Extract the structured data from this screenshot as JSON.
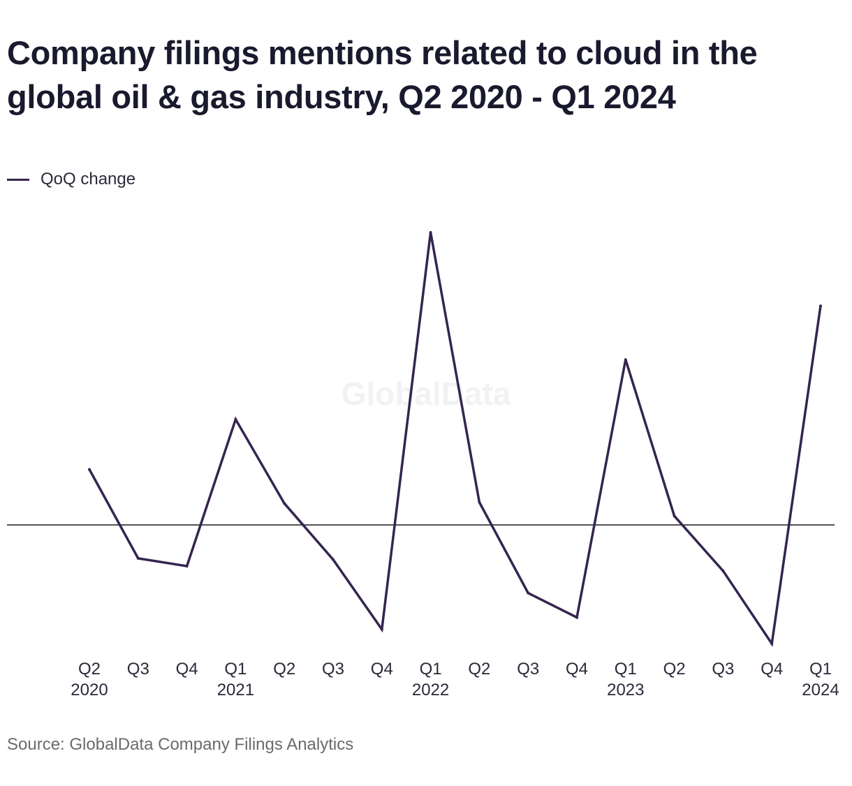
{
  "title": "Company filings mentions related to cloud in the global oil & gas industry, Q2 2020 - Q1 2024",
  "legend": {
    "label": "QoQ change",
    "color": "#35254f"
  },
  "watermark": "GlobalData",
  "source": "Source: GlobalData Company Filings Analytics",
  "chart_data": {
    "type": "line",
    "title": "Company filings mentions related to cloud in the global oil & gas industry, Q2 2020 - Q1 2024",
    "xlabel": "",
    "ylabel": "",
    "y_axis_labels_shown": false,
    "ylim": [
      -20,
      44
    ],
    "zero_line": true,
    "grid": false,
    "legend_position": "top-left",
    "categories": [
      [
        "Q2",
        "2020"
      ],
      [
        "Q3",
        ""
      ],
      [
        "Q4",
        ""
      ],
      [
        "Q1",
        "2021"
      ],
      [
        "Q2",
        ""
      ],
      [
        "Q3",
        ""
      ],
      [
        "Q4",
        ""
      ],
      [
        "Q1",
        "2022"
      ],
      [
        "Q2",
        ""
      ],
      [
        "Q3",
        ""
      ],
      [
        "Q4",
        ""
      ],
      [
        "Q1",
        "2023"
      ],
      [
        "Q2",
        ""
      ],
      [
        "Q3",
        ""
      ],
      [
        "Q4",
        ""
      ],
      [
        "Q1",
        "2024"
      ]
    ],
    "series": [
      {
        "name": "QoQ change",
        "color": "#35254f",
        "values": [
          9.3,
          -5.6,
          -6.9,
          17.7,
          3.6,
          -5.8,
          -17.5,
          49.0,
          3.8,
          -11.4,
          -15.5,
          27.7,
          1.5,
          -7.7,
          -19.9,
          36.7
        ]
      }
    ]
  }
}
